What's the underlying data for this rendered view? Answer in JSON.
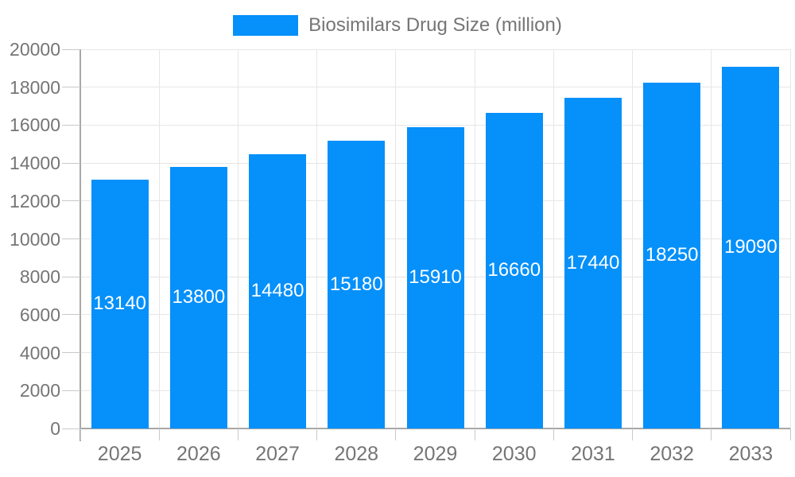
{
  "legend": {
    "label": "Biosimilars Drug Size (million)"
  },
  "chart_data": {
    "type": "bar",
    "title": "Biosimilars Drug Size (million)",
    "categories": [
      "2025",
      "2026",
      "2027",
      "2028",
      "2029",
      "2030",
      "2031",
      "2032",
      "2033"
    ],
    "values": [
      13140,
      13800,
      14480,
      15180,
      15910,
      16660,
      17440,
      18250,
      19090
    ],
    "xlabel": "",
    "ylabel": "",
    "ylim": [
      0,
      20000
    ],
    "ytick_step": 2000,
    "y_tick_labels": [
      "0",
      "2000",
      "4000",
      "6000",
      "8000",
      "10000",
      "12000",
      "14000",
      "16000",
      "18000",
      "20000"
    ],
    "grid": true,
    "legend_position": "top-center",
    "value_label_position": "inside-center"
  },
  "colors": {
    "bar": "#0590FA",
    "text": "#757575",
    "axis": "#A8A8A8",
    "grid": "#E6E6E6",
    "tick": "#C9C9C9",
    "value_label": "#FFFFFF",
    "background": "#FFFFFF"
  }
}
